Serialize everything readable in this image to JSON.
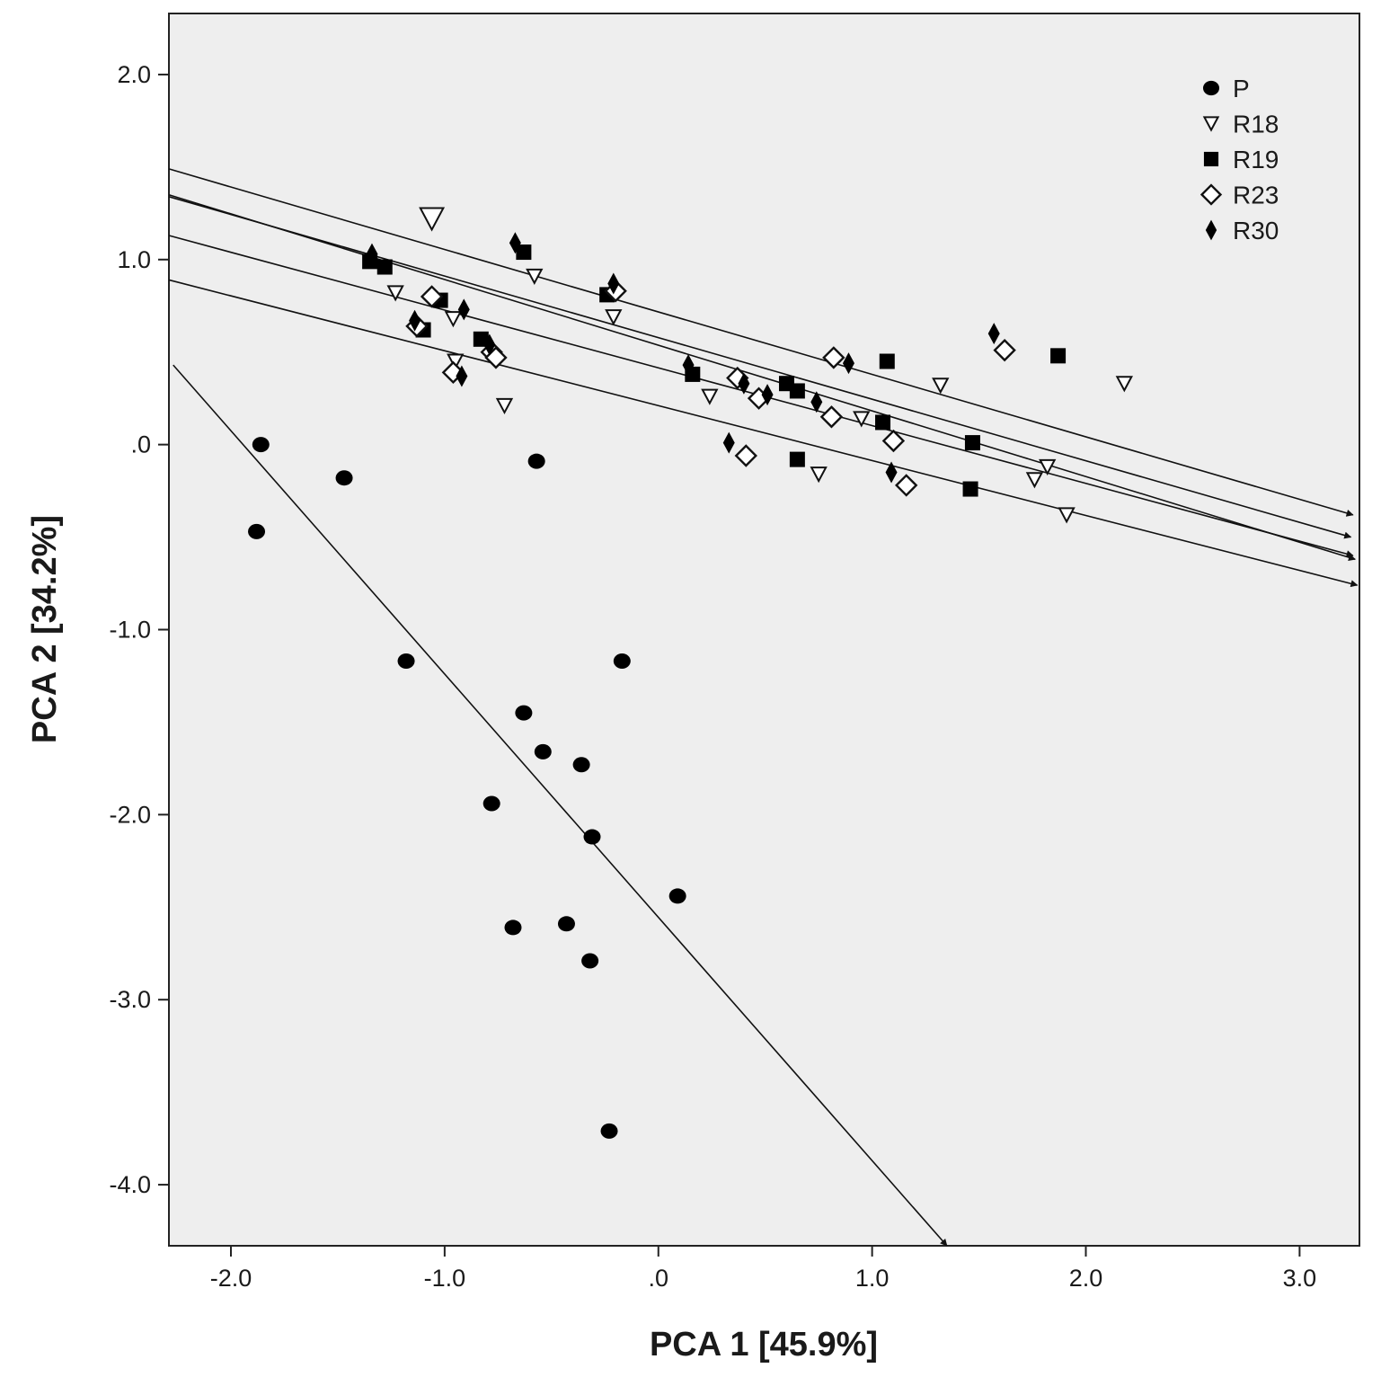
{
  "chart_data": {
    "type": "scatter",
    "title": "",
    "xlabel": "PCA 1 [45.9%]",
    "ylabel": "PCA 2 [34.2%]",
    "xlim": [
      -2.29,
      3.28
    ],
    "ylim": [
      -4.33,
      2.33
    ],
    "xticks": [
      -2.0,
      -1.0,
      0.0,
      1.0,
      2.0,
      3.0
    ],
    "xtick_labels": [
      "-2.0",
      "-1.0",
      ".0",
      "1.0",
      "2.0",
      "3.0"
    ],
    "yticks": [
      2.0,
      1.0,
      0.0,
      -1.0,
      -2.0,
      -3.0,
      -4.0
    ],
    "ytick_labels": [
      "2.0",
      "1.0",
      ".0",
      "-1.0",
      "-2.0",
      "-3.0",
      "-4.0"
    ],
    "grid": false,
    "legend_position": "top-right",
    "background": "#eeeeee",
    "series": [
      {
        "name": "P",
        "marker": "circle",
        "points": [
          [
            -1.86,
            0.0
          ],
          [
            -1.47,
            -0.18
          ],
          [
            -1.88,
            -0.47
          ],
          [
            -0.57,
            -0.09
          ],
          [
            -1.18,
            -1.17
          ],
          [
            -0.17,
            -1.17
          ],
          [
            -0.63,
            -1.45
          ],
          [
            -0.54,
            -1.66
          ],
          [
            -0.36,
            -1.73
          ],
          [
            -0.78,
            -1.94
          ],
          [
            -0.31,
            -2.12
          ],
          [
            0.09,
            -2.44
          ],
          [
            -0.68,
            -2.61
          ],
          [
            -0.43,
            -2.59
          ],
          [
            -0.32,
            -2.79
          ],
          [
            -0.23,
            -3.71
          ]
        ]
      },
      {
        "name": "R18",
        "marker": "triangle-down",
        "points": [
          [
            -1.06,
            1.22
          ],
          [
            -1.23,
            0.82
          ],
          [
            -0.58,
            0.91
          ],
          [
            -0.96,
            0.68
          ],
          [
            -0.95,
            0.45
          ],
          [
            -0.72,
            0.21
          ],
          [
            -0.21,
            0.69
          ],
          [
            0.24,
            0.26
          ],
          [
            0.75,
            -0.16
          ],
          [
            0.95,
            0.14
          ],
          [
            1.32,
            0.32
          ],
          [
            1.76,
            -0.19
          ],
          [
            1.82,
            -0.12
          ],
          [
            1.91,
            -0.38
          ],
          [
            2.18,
            0.33
          ]
        ]
      },
      {
        "name": "R19",
        "marker": "square",
        "points": [
          [
            -1.35,
            0.99
          ],
          [
            -1.28,
            0.96
          ],
          [
            -1.02,
            0.78
          ],
          [
            -1.1,
            0.62
          ],
          [
            -0.83,
            0.57
          ],
          [
            -0.63,
            1.04
          ],
          [
            -0.24,
            0.81
          ],
          [
            0.16,
            0.38
          ],
          [
            0.6,
            0.33
          ],
          [
            0.65,
            0.29
          ],
          [
            0.65,
            -0.08
          ],
          [
            1.07,
            0.45
          ],
          [
            1.05,
            0.12
          ],
          [
            1.47,
            0.01
          ],
          [
            1.46,
            -0.24
          ],
          [
            1.87,
            0.48
          ]
        ]
      },
      {
        "name": "R23",
        "marker": "diamond",
        "points": [
          [
            -1.06,
            0.8
          ],
          [
            -1.13,
            0.64
          ],
          [
            -0.96,
            0.39
          ],
          [
            -0.78,
            0.5
          ],
          [
            -0.76,
            0.47
          ],
          [
            -0.2,
            0.83
          ],
          [
            0.37,
            0.36
          ],
          [
            0.47,
            0.25
          ],
          [
            0.41,
            -0.06
          ],
          [
            0.82,
            0.47
          ],
          [
            0.81,
            0.15
          ],
          [
            1.1,
            0.02
          ],
          [
            1.16,
            -0.22
          ],
          [
            1.62,
            0.51
          ]
        ]
      },
      {
        "name": "R30",
        "marker": "thin-diamond",
        "points": [
          [
            -1.34,
            1.03
          ],
          [
            -1.14,
            0.67
          ],
          [
            -0.92,
            0.37
          ],
          [
            -0.91,
            0.73
          ],
          [
            -0.79,
            0.54
          ],
          [
            -0.67,
            1.09
          ],
          [
            -0.21,
            0.87
          ],
          [
            0.14,
            0.43
          ],
          [
            0.33,
            0.01
          ],
          [
            0.4,
            0.33
          ],
          [
            0.51,
            0.27
          ],
          [
            0.74,
            0.23
          ],
          [
            0.89,
            0.44
          ],
          [
            1.09,
            -0.15
          ],
          [
            1.57,
            0.6
          ]
        ]
      }
    ],
    "regression_lines": [
      {
        "from": [
          -2.29,
          1.49
        ],
        "to": [
          3.25,
          -0.38
        ]
      },
      {
        "from": [
          -2.29,
          1.34
        ],
        "to": [
          3.24,
          -0.5
        ]
      },
      {
        "from": [
          -2.29,
          1.35
        ],
        "to": [
          3.26,
          -0.62
        ]
      },
      {
        "from": [
          -2.29,
          1.13
        ],
        "to": [
          3.25,
          -0.6
        ]
      },
      {
        "from": [
          -2.29,
          0.89
        ],
        "to": [
          3.27,
          -0.76
        ]
      },
      {
        "from": [
          -2.27,
          0.43
        ],
        "to": [
          1.35,
          -4.33
        ]
      }
    ]
  }
}
